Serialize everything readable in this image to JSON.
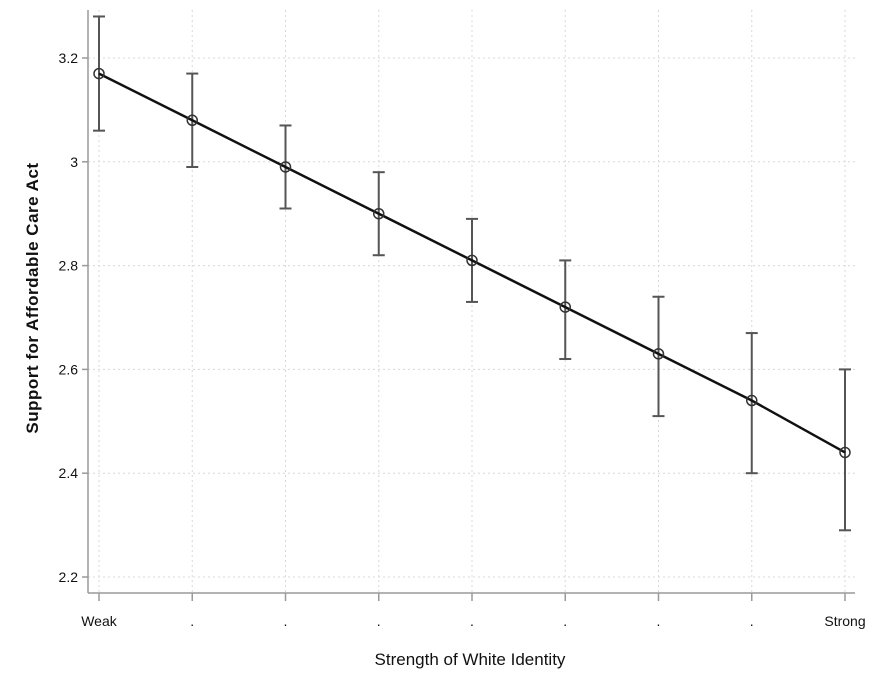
{
  "chart_data": {
    "type": "line",
    "title": "",
    "xlabel": "Strength of White Identity",
    "ylabel": "Support for Affordable Care Act",
    "x_tick_labels": [
      "Weak",
      ".",
      ".",
      ".",
      ".",
      ".",
      ".",
      ".",
      "Strong"
    ],
    "y_ticks": [
      2.2,
      2.4,
      2.6,
      2.8,
      3.0,
      3.2
    ],
    "y_tick_labels": [
      "2.2",
      "2.4",
      "2.6",
      "2.8",
      "3",
      "3.2"
    ],
    "ylim": [
      2.2,
      3.27
    ],
    "grid": true,
    "error_bars": true,
    "series": [
      {
        "values": [
          3.17,
          3.08,
          2.99,
          2.9,
          2.81,
          2.72,
          2.63,
          2.54,
          2.44
        ],
        "lower": [
          3.06,
          2.99,
          2.91,
          2.82,
          2.73,
          2.62,
          2.51,
          2.4,
          2.29
        ],
        "upper": [
          3.28,
          3.17,
          3.07,
          2.98,
          2.89,
          2.81,
          2.74,
          2.67,
          2.6
        ]
      }
    ],
    "colors": {
      "line": "#111111",
      "error_bar": "#555555",
      "marker": "#333333",
      "grid": "#d8d8d8",
      "axis": "#9a9a9a"
    }
  }
}
